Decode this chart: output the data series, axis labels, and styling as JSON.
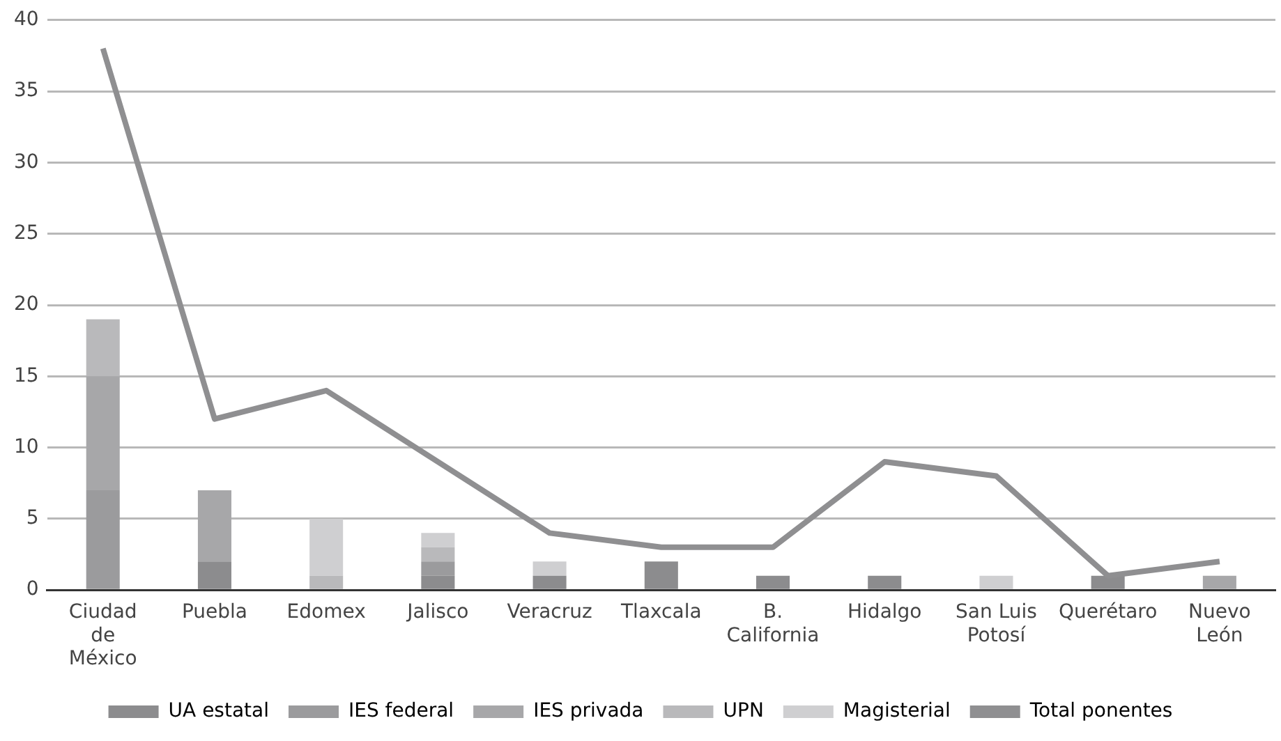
{
  "chart_data": {
    "type": "bar",
    "stacked": true,
    "categories": [
      "Ciudad de México",
      "Puebla",
      "Edomex",
      "Jalisco",
      "Veracruz",
      "Tlaxcala",
      "B. California",
      "Hidalgo",
      "San Luis Potosí",
      "Querétaro",
      "Nuevo León"
    ],
    "series": [
      {
        "name": "UA estatal",
        "color": "#8c8c8e",
        "values": [
          0,
          2,
          0,
          1,
          1,
          2,
          1,
          1,
          0,
          1,
          0
        ]
      },
      {
        "name": "IES federal",
        "color": "#9b9b9d",
        "values": [
          7,
          0,
          0,
          1,
          0,
          0,
          0,
          0,
          0,
          0,
          0
        ]
      },
      {
        "name": "IES privada",
        "color": "#a7a7a9",
        "values": [
          8,
          5,
          0,
          0,
          0,
          0,
          0,
          0,
          0,
          0,
          1
        ]
      },
      {
        "name": "UPN",
        "color": "#b9b9bb",
        "values": [
          4,
          0,
          1,
          1,
          0,
          0,
          0,
          0,
          0,
          0,
          0
        ]
      },
      {
        "name": "Magisterial",
        "color": "#cfcfd1",
        "values": [
          0,
          0,
          4,
          1,
          1,
          0,
          0,
          0,
          1,
          0,
          0
        ]
      },
      {
        "name": "Total ponentes",
        "type": "line",
        "color": "#8f8f91",
        "values": [
          38,
          12,
          14,
          9,
          4,
          3,
          3,
          9,
          8,
          1,
          2
        ]
      }
    ],
    "ylim": [
      0,
      40
    ],
    "yticks": [
      0,
      5,
      10,
      15,
      20,
      25,
      30,
      35,
      40
    ],
    "grid": "y",
    "legend": "bottom",
    "marker": "none"
  }
}
